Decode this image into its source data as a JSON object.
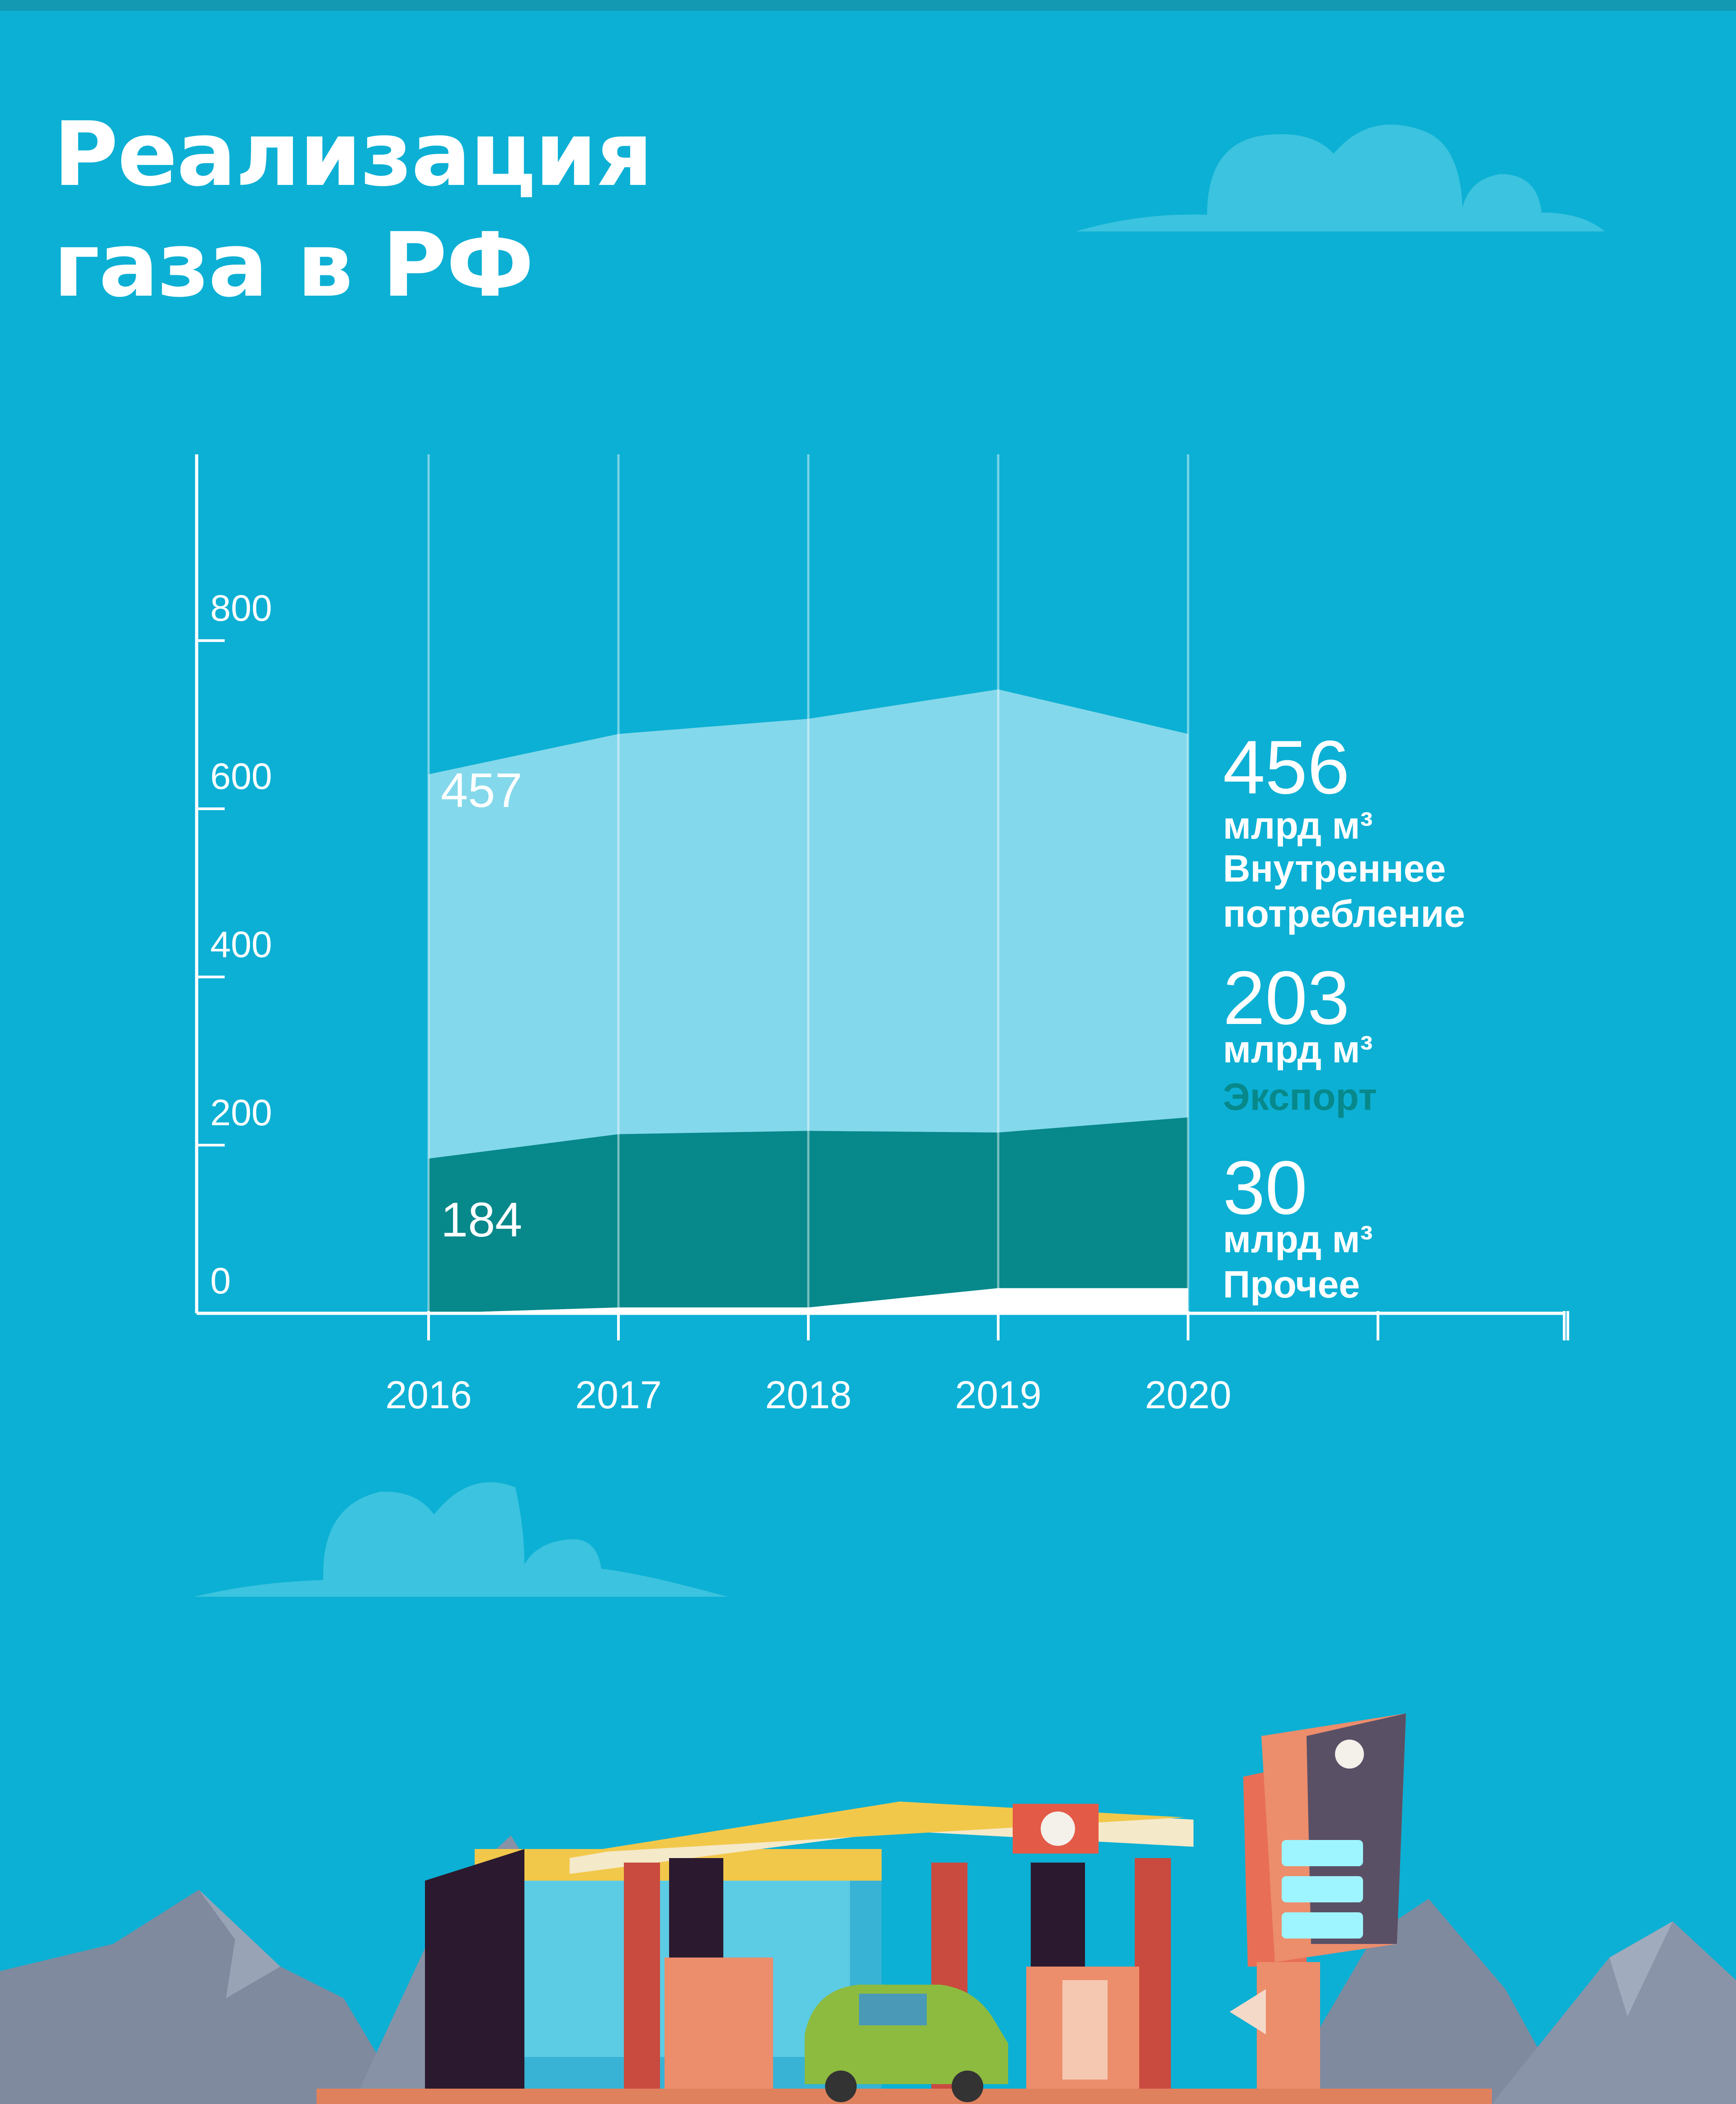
{
  "title_lines": [
    "Реализация",
    "газа в РФ"
  ],
  "colors": {
    "background": "#0cb0d4",
    "domestic": "#84d8eb",
    "export": "#07888a",
    "other": "#ffffff",
    "cloud": "#3bc3df",
    "axis": "#ffffff"
  },
  "chart_data": {
    "type": "area",
    "stacked": true,
    "x": [
      "2016",
      "2017",
      "2018",
      "2019",
      "2020"
    ],
    "ylim": [
      0,
      1000
    ],
    "yticks": [
      "0",
      "200",
      "400",
      "600",
      "800"
    ],
    "series": [
      {
        "name": "Прочее",
        "values": [
          0,
          7,
          7,
          30,
          30
        ],
        "color": "#ffffff"
      },
      {
        "name": "Экспорт",
        "values": [
          184,
          206,
          210,
          185,
          203
        ],
        "color": "#07888a"
      },
      {
        "name": "Внутреннее потребление",
        "values": [
          457,
          476,
          490,
          527,
          456
        ],
        "color": "#84d8eb"
      }
    ],
    "data_labels": [
      {
        "series": "Внутреннее потребление",
        "x": "2016",
        "text": "457"
      },
      {
        "series": "Экспорт",
        "x": "2016",
        "text": "184"
      }
    ],
    "summary": [
      {
        "value": "456",
        "unit": "млрд м³",
        "name": "Внутреннее",
        "name2": "потребление",
        "name_color": "#ffffff"
      },
      {
        "value": "203",
        "unit": "млрд м³",
        "name": "Экспорт",
        "name_color": "#07888a"
      },
      {
        "value": "30",
        "unit": "млрд м³",
        "name": "Прочее",
        "name_color": "#ffffff"
      }
    ],
    "grid": true
  }
}
